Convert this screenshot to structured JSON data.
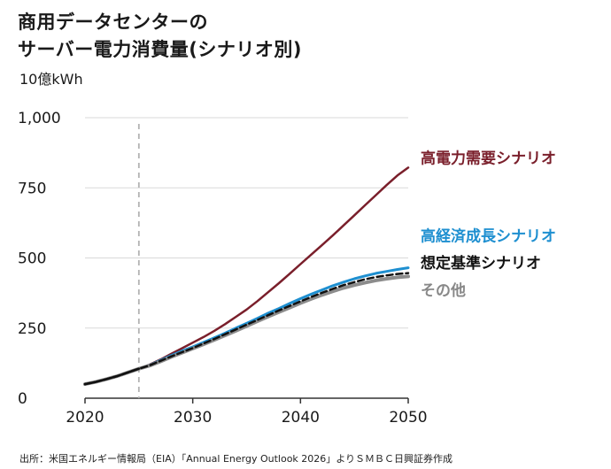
{
  "title_lines": [
    "商用データセンターの",
    "サーバー電力消費量(シナリオ別)"
  ],
  "unit": "10億kWh",
  "source": "出所：米国エネルギー情報局（EIA）「Annual Energy Outlook 2026」よりＳＭＢＣ日興証券作成",
  "chart_data": {
    "type": "line",
    "title": "商用データセンターのサーバー電力消費量(シナリオ別)",
    "ylabel": "10億kWh",
    "xlim": [
      2020,
      2050
    ],
    "ylim": [
      0,
      1000
    ],
    "x_ticks": [
      2020,
      2030,
      2040,
      2050
    ],
    "y_ticks": [
      0,
      250,
      500,
      750,
      1000
    ],
    "y_tick_labels": [
      "0",
      "250",
      "500",
      "750",
      "1,000"
    ],
    "grid": "horizontal",
    "legend": "labels at right end of lines",
    "reference_line": {
      "x": 2025,
      "style": "dashed",
      "color": "#b3b3b3"
    },
    "x": [
      2020,
      2021,
      2022,
      2023,
      2024,
      2025,
      2026,
      2027,
      2028,
      2029,
      2030,
      2031,
      2032,
      2033,
      2034,
      2035,
      2036,
      2037,
      2038,
      2039,
      2040,
      2041,
      2042,
      2043,
      2044,
      2045,
      2046,
      2047,
      2048,
      2049,
      2050
    ],
    "series": [
      {
        "name": "高電力需要シナリオ",
        "color": "#7a1f2b",
        "width": 2.5,
        "dash": "",
        "values": [
          50,
          58,
          68,
          79,
          92,
          105,
          120,
          138,
          158,
          178,
          198,
          218,
          240,
          264,
          290,
          316,
          346,
          378,
          410,
          444,
          478,
          512,
          546,
          580,
          616,
          652,
          688,
          724,
          760,
          794,
          822
        ]
      },
      {
        "name": "高経済成長シナリオ",
        "color": "#1e8fd0",
        "width": 3,
        "dash": "",
        "values": [
          50,
          58,
          68,
          79,
          92,
          105,
          118,
          135,
          152,
          168,
          183,
          199,
          215,
          232,
          250,
          267,
          285,
          303,
          320,
          338,
          355,
          371,
          386,
          401,
          414,
          426,
          436,
          445,
          452,
          459,
          465
        ]
      },
      {
        "name": "その他",
        "color": "#8c8c8c",
        "width": 4,
        "dash": "",
        "values": [
          50,
          58,
          68,
          79,
          92,
          105,
          116,
          131,
          147,
          162,
          177,
          192,
          208,
          224,
          240,
          257,
          274,
          291,
          307,
          323,
          339,
          354,
          368,
          381,
          393,
          403,
          412,
          420,
          426,
          431,
          434
        ]
      },
      {
        "name": "想定基準シナリオ",
        "color": "#111111",
        "width": 2.5,
        "dash": "7,4",
        "values": [
          50,
          58,
          68,
          79,
          92,
          105,
          117,
          133,
          149,
          164,
          179,
          195,
          211,
          228,
          245,
          262,
          279,
          296,
          313,
          329,
          345,
          361,
          376,
          390,
          403,
          414,
          424,
          432,
          438,
          443,
          446
        ]
      },
      {
        "name": "",
        "color": "#111111",
        "width": 2.5,
        "dash": "",
        "values": [
          50,
          58,
          68,
          79,
          92,
          105,
          null,
          null,
          null,
          null,
          null,
          null,
          null,
          null,
          null,
          null,
          null,
          null,
          null,
          null,
          null,
          null,
          null,
          null,
          null,
          null,
          null,
          null,
          null,
          null,
          null
        ]
      }
    ],
    "labels": [
      {
        "text": "高電力需要シナリオ",
        "color": "#7a1f2b",
        "value": 838
      },
      {
        "text": "高経済成長シナリオ",
        "color": "#1e8fd0",
        "value": 560
      },
      {
        "text": "想定基準シナリオ",
        "color": "#111111",
        "value": 463
      },
      {
        "text": "その他",
        "color": "#888888",
        "value": 366
      }
    ]
  }
}
